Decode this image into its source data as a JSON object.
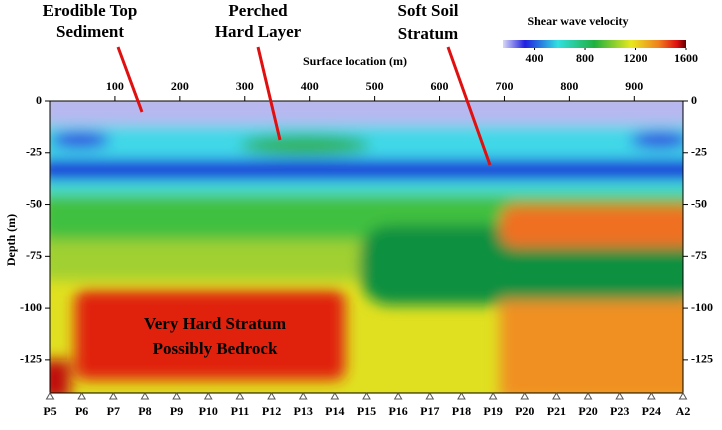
{
  "chart_data": {
    "type": "heatmap",
    "x_label": "Surface location (m)",
    "y_label": "Depth (m)",
    "xlim": [
      0,
      975
    ],
    "xticks": [
      100,
      200,
      300,
      400,
      500,
      600,
      700,
      800,
      900
    ],
    "ylim": [
      -141,
      0
    ],
    "yticks": [
      0,
      -25,
      -50,
      -75,
      -100,
      -125
    ],
    "categories": [
      "P5",
      "P6",
      "P7",
      "P8",
      "P9",
      "P10",
      "P11",
      "P12",
      "P13",
      "P14",
      "P15",
      "P16",
      "P17",
      "P18",
      "P19",
      "P20",
      "P21",
      "P20",
      "P23",
      "P24",
      "A2"
    ],
    "colorbar": {
      "title": "Shear wave velocity",
      "lim": [
        150,
        1600
      ],
      "ticks": [
        400,
        800,
        1200,
        1600
      ]
    },
    "annotations": [
      {
        "lines": [
          "Erodible Top",
          "Sediment"
        ]
      },
      {
        "lines": [
          "Perched",
          "Hard Layer"
        ]
      },
      {
        "lines": [
          "Soft Soil",
          "Stratum"
        ]
      },
      {
        "lines": [
          "Very Hard Stratum",
          "Possibly Bedrock"
        ]
      }
    ]
  }
}
